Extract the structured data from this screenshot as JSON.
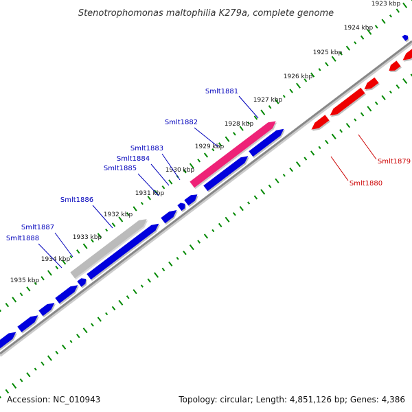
{
  "title": "Stenotrophomonas maltophilia K279a, complete genome",
  "footer": {
    "accession": "Accession: NC_010943",
    "summary": "Topology: circular; Length: 4,851,126 bp; Genes: 4,386"
  },
  "colors": {
    "forward_gene": "#0000dd",
    "reverse_gene": "#ee0000",
    "highlight_gene": "#ee2277",
    "pseudo_gene": "#bbbbbb",
    "gc_track": "#008800",
    "backbone": "#888888",
    "forward_label": "#0000bb",
    "reverse_label": "#cc0000"
  },
  "kbp_labels": [
    "1923 kbp",
    "1924 kbp",
    "1925 kbp",
    "1926 kbp",
    "1927 kbp",
    "1928 kbp",
    "1929 kbp",
    "1930 kbp",
    "1931 kbp",
    "1932 kbp",
    "1933 kbp",
    "1934 kbp",
    "1935 kbp"
  ],
  "gene_labels": [
    {
      "text": "Smlt1881",
      "strand": "forward"
    },
    {
      "text": "Smlt1882",
      "strand": "forward"
    },
    {
      "text": "Smlt1883",
      "strand": "forward"
    },
    {
      "text": "Smlt1884",
      "strand": "forward"
    },
    {
      "text": "Smlt1885",
      "strand": "forward"
    },
    {
      "text": "Smlt1886",
      "strand": "forward"
    },
    {
      "text": "Smlt1887",
      "strand": "forward"
    },
    {
      "text": "Smlt1888",
      "strand": "forward"
    },
    {
      "text": "Smlt1879",
      "strand": "reverse"
    },
    {
      "text": "Smlt1880",
      "strand": "reverse"
    }
  ]
}
